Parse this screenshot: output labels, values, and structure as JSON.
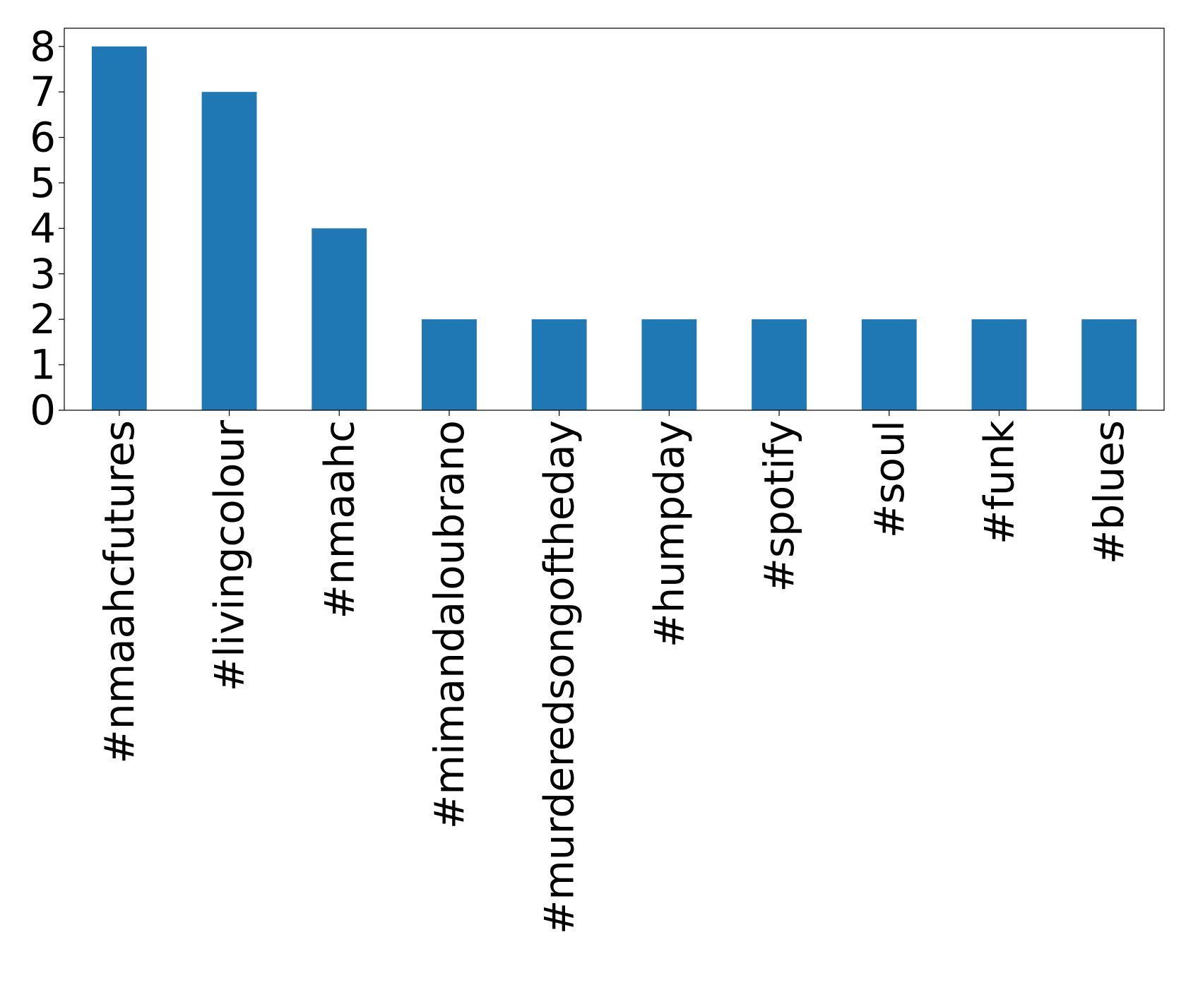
{
  "chart_data": {
    "type": "bar",
    "categories": [
      "#nmaahcfutures",
      "#livingcolour",
      "#nmaahc",
      "#mimandaloubrano",
      "#murderedsongoftheday",
      "#humpday",
      "#spotify",
      "#soul",
      "#funk",
      "#blues"
    ],
    "values": [
      8,
      7,
      4,
      2,
      2,
      2,
      2,
      2,
      2,
      2
    ],
    "color": "#1f77b4",
    "ylim": [
      0,
      8.4
    ],
    "yticks": [
      0,
      1,
      2,
      3,
      4,
      5,
      6,
      7,
      8
    ],
    "grid": false
  }
}
